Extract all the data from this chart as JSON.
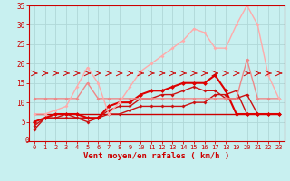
{
  "xlabel": "Vent moyen/en rafales ( km/h )",
  "bg_color": "#c8f0f0",
  "grid_color": "#b0d8d8",
  "x": [
    0,
    1,
    2,
    3,
    4,
    5,
    6,
    7,
    8,
    9,
    10,
    11,
    12,
    13,
    14,
    15,
    16,
    17,
    18,
    19,
    20,
    21,
    22,
    23
  ],
  "xlim": [
    -0.5,
    23.5
  ],
  "ylim": [
    0,
    35
  ],
  "yticks": [
    0,
    5,
    10,
    15,
    20,
    25,
    30,
    35
  ],
  "tick_color": "#cc0000",
  "axis_color": "#cc0000",
  "lines": [
    {
      "y": [
        7,
        7,
        7,
        7,
        7,
        7,
        7,
        7,
        7,
        7,
        7,
        7,
        7,
        7,
        7,
        7,
        7,
        7,
        7,
        7,
        7,
        7,
        7,
        7
      ],
      "color": "#cc0000",
      "lw": 1.0,
      "marker": null,
      "ms": 0
    },
    {
      "y": [
        3,
        6,
        6,
        6,
        6,
        5,
        6,
        7,
        7,
        8,
        9,
        9,
        9,
        9,
        9,
        10,
        10,
        12,
        12,
        13,
        7,
        7,
        7,
        7
      ],
      "color": "#cc1111",
      "lw": 1.0,
      "marker": "D",
      "ms": 2.0
    },
    {
      "y": [
        4,
        6,
        6,
        7,
        6,
        6,
        6,
        8,
        9,
        9,
        11,
        11,
        12,
        12,
        13,
        14,
        13,
        13,
        11,
        11,
        12,
        7,
        7,
        7
      ],
      "color": "#cc1111",
      "lw": 1.0,
      "marker": "D",
      "ms": 2.0
    },
    {
      "y": [
        5,
        6,
        7,
        7,
        7,
        6,
        6,
        9,
        10,
        10,
        12,
        13,
        13,
        14,
        15,
        15,
        15,
        17,
        13,
        7,
        7,
        7,
        7,
        7
      ],
      "color": "#dd0000",
      "lw": 1.5,
      "marker": "D",
      "ms": 2.5
    },
    {
      "y": [
        11,
        11,
        11,
        11,
        11,
        15,
        11,
        11,
        11,
        11,
        11,
        11,
        11,
        11,
        11,
        11,
        11,
        11,
        11,
        11,
        21,
        11,
        11,
        11
      ],
      "color": "#ee8888",
      "lw": 1.0,
      "marker": "D",
      "ms": 2.0
    },
    {
      "y": [
        7,
        7,
        8,
        9,
        14,
        19,
        15,
        7,
        10,
        14,
        18,
        20,
        22,
        24,
        26,
        29,
        28,
        24,
        24,
        30,
        35,
        30,
        17,
        11
      ],
      "color": "#ffaaaa",
      "lw": 1.0,
      "marker": "D",
      "ms": 2.0
    }
  ]
}
